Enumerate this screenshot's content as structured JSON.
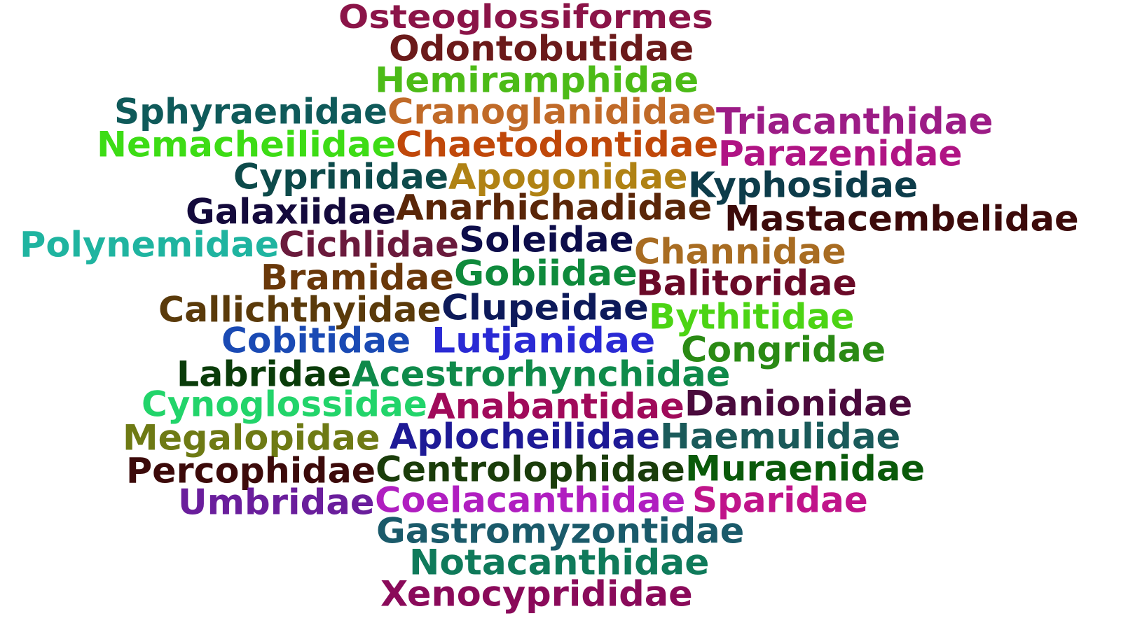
{
  "words": [
    {
      "text": "Osteoglossiformes",
      "color": "#8b1448"
    },
    {
      "text": "Odontobutidae",
      "color": "#6b1a1a"
    },
    {
      "text": "Hemiramphidae",
      "color": "#4cbb17"
    },
    {
      "text": "Sphyraenidae",
      "color": "#0f5a5a"
    },
    {
      "text": "Cranoglanididae",
      "color": "#c06a28"
    },
    {
      "text": "Triacanthidae",
      "color": "#9c1c86"
    },
    {
      "text": "Nemacheilidae",
      "color": "#3ddc15"
    },
    {
      "text": "Chaetodontidae",
      "color": "#c0480a"
    },
    {
      "text": "Parazenidae",
      "color": "#b01484"
    },
    {
      "text": "Cyprinidae",
      "color": "#0d4a4a"
    },
    {
      "text": "Apogonidae",
      "color": "#b08214"
    },
    {
      "text": "Kyphosidae",
      "color": "#0d3c4a"
    },
    {
      "text": "Galaxiidae",
      "color": "#140a3c"
    },
    {
      "text": "Anarhichadidae",
      "color": "#5a2608"
    },
    {
      "text": "Mastacembelidae",
      "color": "#3c0a0a"
    },
    {
      "text": "Polynemidae",
      "color": "#1fb4a0"
    },
    {
      "text": "Cichlidae",
      "color": "#6a1a3c"
    },
    {
      "text": "Soleidae",
      "color": "#0d0d4a"
    },
    {
      "text": "Channidae",
      "color": "#a86c22"
    },
    {
      "text": "Bramidae",
      "color": "#6a380a"
    },
    {
      "text": "Gobiidae",
      "color": "#0f8a3c"
    },
    {
      "text": "Balitoridae",
      "color": "#6a0a28"
    },
    {
      "text": "Callichthyidae",
      "color": "#5a3a0a"
    },
    {
      "text": "Clupeidae",
      "color": "#0d1a5a"
    },
    {
      "text": "Bythitidae",
      "color": "#4cd414"
    },
    {
      "text": "Cobitidae",
      "color": "#1a4ab4"
    },
    {
      "text": "Lutjanidae",
      "color": "#2a2ad4"
    },
    {
      "text": "Congridae",
      "color": "#2a8a14"
    },
    {
      "text": "Labridae",
      "color": "#0a3c0a"
    },
    {
      "text": "Acestrorhynchidae",
      "color": "#0f8a4a"
    },
    {
      "text": "Cynoglossidae",
      "color": "#22d46a"
    },
    {
      "text": "Anabantidae",
      "color": "#a00a5a"
    },
    {
      "text": "Danionidae",
      "color": "#4a0a3c"
    },
    {
      "text": "Megalopidae",
      "color": "#6e7a14"
    },
    {
      "text": "Aplocheilidae",
      "color": "#1e1a96"
    },
    {
      "text": "Haemulidae",
      "color": "#1a5a5a"
    },
    {
      "text": "Percophidae",
      "color": "#3c0a0a"
    },
    {
      "text": "Centrolophidae",
      "color": "#1a3c0a"
    },
    {
      "text": "Muraenidae",
      "color": "#0a5a0a"
    },
    {
      "text": "Umbridae",
      "color": "#6a1e9c"
    },
    {
      "text": "Coelacanthidae",
      "color": "#b01ec0"
    },
    {
      "text": "Sparidae",
      "color": "#c0148a"
    },
    {
      "text": "Gastromyzontidae",
      "color": "#1a5a6a"
    },
    {
      "text": "Notacanthidae",
      "color": "#0f7a5a"
    },
    {
      "text": "Xenocyprididae",
      "color": "#8a0a5a"
    }
  ]
}
